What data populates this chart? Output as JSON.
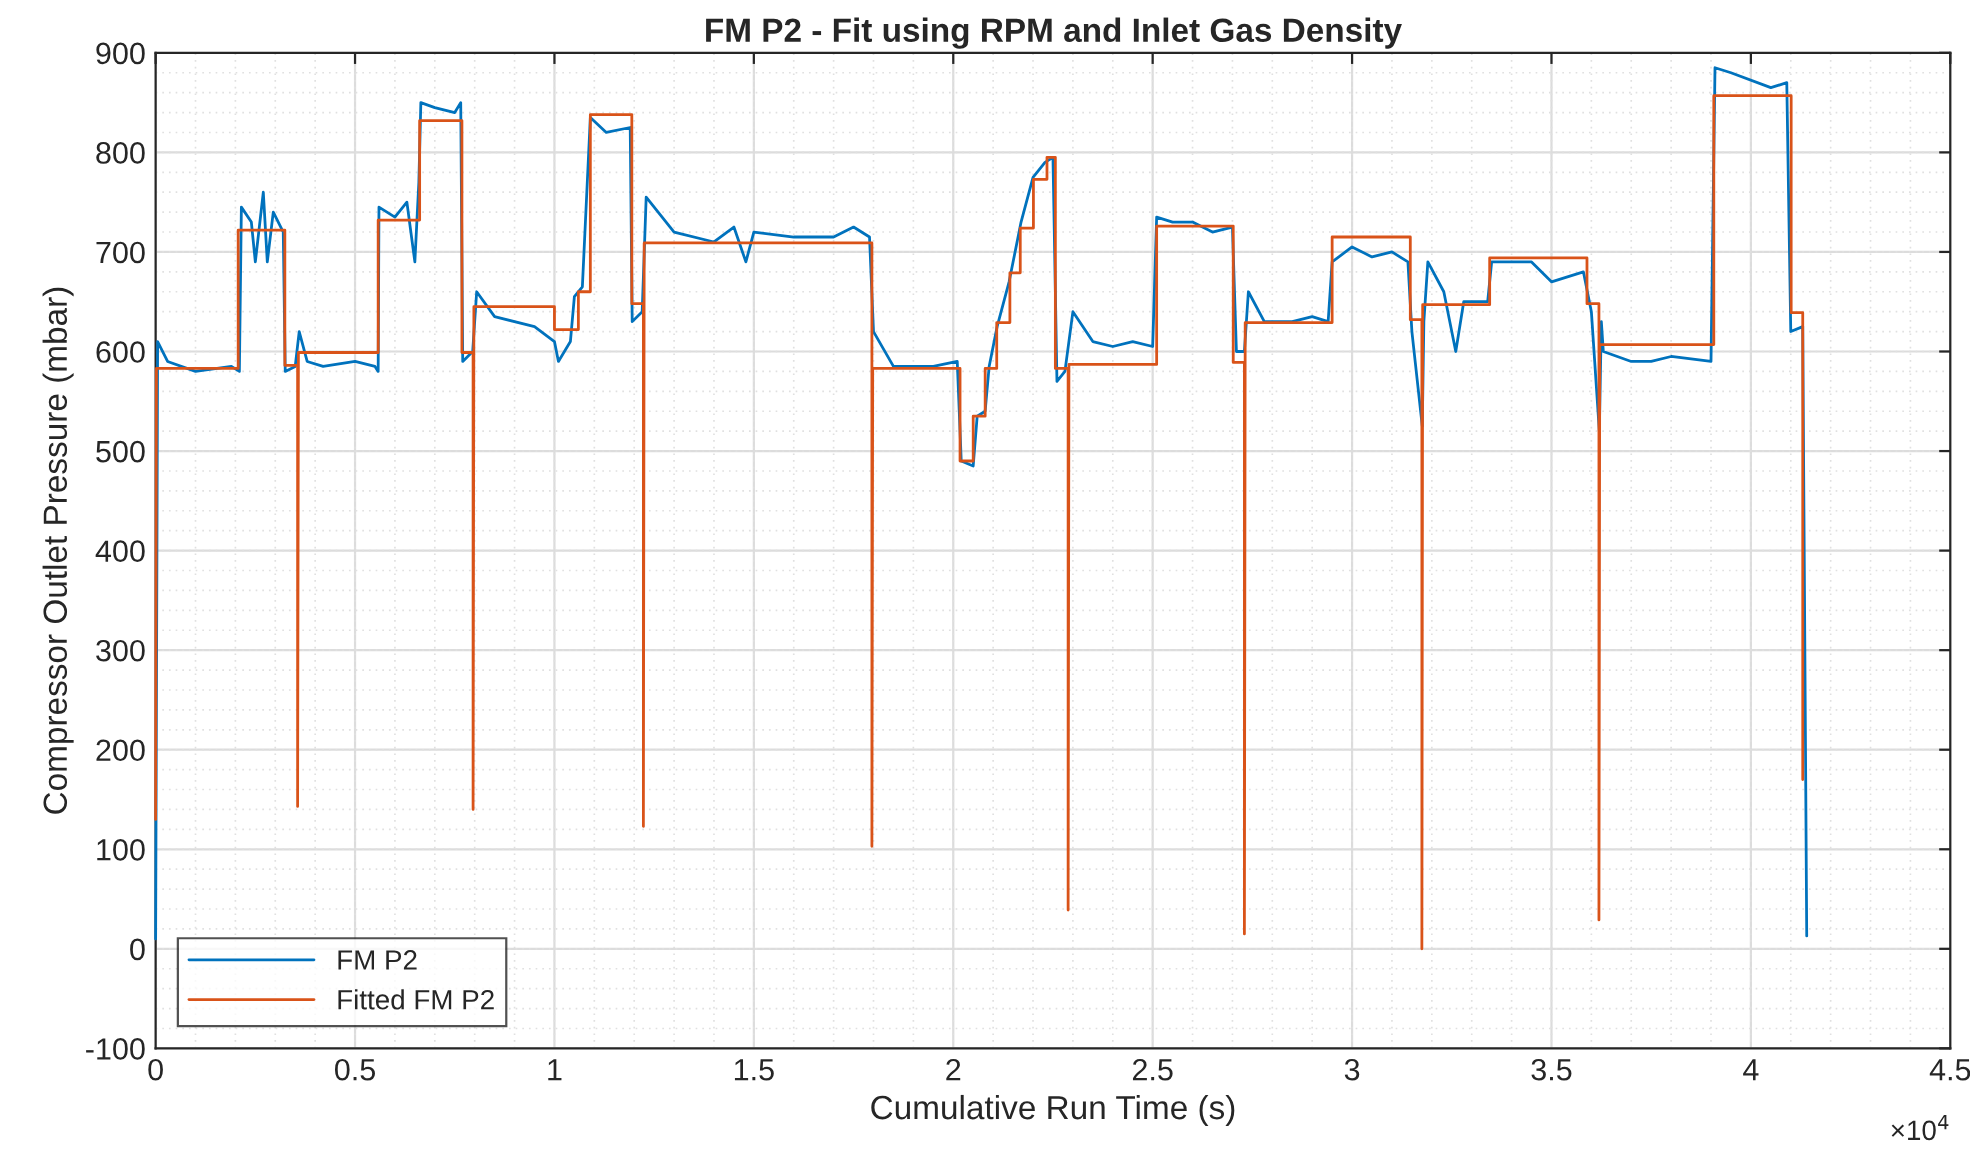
{
  "chart_data": {
    "type": "line",
    "title": "FM P2 - Fit using RPM and Inlet Gas Density",
    "xlabel": "Cumulative Run Time (s)",
    "ylabel": "Compressor Outlet Pressure (mbar)",
    "annotations": [
      "×10$^{4}$"
    ],
    "xlim": [
      0,
      4.5
    ],
    "ylim": [
      -100,
      900
    ],
    "xticks": [
      0,
      0.5,
      1,
      1.5,
      2,
      2.5,
      3,
      3.5,
      4,
      4.5
    ],
    "yticks": [
      -100,
      0,
      100,
      200,
      300,
      400,
      500,
      600,
      700,
      800,
      900
    ],
    "grid": true,
    "legend": "bottom left",
    "line_style": "solid",
    "marker": "none",
    "series": [
      {
        "name": "FM P2",
        "color": "#0072bd",
        "x": [
          0,
          0.005,
          0.03,
          0.1,
          0.19,
          0.21,
          0.215,
          0.24,
          0.25,
          0.27,
          0.28,
          0.295,
          0.32,
          0.325,
          0.35,
          0.36,
          0.38,
          0.42,
          0.5,
          0.55,
          0.558,
          0.56,
          0.6,
          0.63,
          0.65,
          0.66,
          0.665,
          0.7,
          0.75,
          0.765,
          0.77,
          0.795,
          0.805,
          0.85,
          0.95,
          1.0,
          1.01,
          1.04,
          1.05,
          1.07,
          1.09,
          1.13,
          1.19,
          1.195,
          1.22,
          1.23,
          1.3,
          1.4,
          1.45,
          1.48,
          1.5,
          1.6,
          1.7,
          1.75,
          1.79,
          1.8,
          1.85,
          1.95,
          2.01,
          2.02,
          2.05,
          2.06,
          2.08,
          2.09,
          2.11,
          2.14,
          2.17,
          2.2,
          2.23,
          2.25,
          2.26,
          2.28,
          2.3,
          2.35,
          2.4,
          2.45,
          2.5,
          2.51,
          2.55,
          2.6,
          2.65,
          2.7,
          2.71,
          2.73,
          2.74,
          2.78,
          2.85,
          2.9,
          2.94,
          2.95,
          3.0,
          3.05,
          3.1,
          3.14,
          3.15,
          3.176,
          3.18,
          3.19,
          3.23,
          3.26,
          3.28,
          3.34,
          3.35,
          3.4,
          3.45,
          3.5,
          3.58,
          3.6,
          3.62,
          3.625,
          3.63,
          3.7,
          3.75,
          3.8,
          3.9,
          3.91,
          3.95,
          4.05,
          4.09,
          4.1,
          4.13,
          4.14
        ],
        "values": [
          10,
          610,
          590,
          580,
          585,
          580,
          745,
          730,
          690,
          760,
          690,
          740,
          720,
          580,
          585,
          620,
          590,
          585,
          590,
          585,
          580,
          745,
          735,
          750,
          690,
          770,
          850,
          845,
          840,
          850,
          590,
          600,
          660,
          635,
          625,
          610,
          590,
          610,
          655,
          665,
          835,
          820,
          825,
          630,
          640,
          755,
          720,
          710,
          725,
          690,
          720,
          715,
          715,
          725,
          715,
          620,
          585,
          585,
          590,
          490,
          485,
          535,
          540,
          585,
          625,
          670,
          730,
          775,
          790,
          795,
          570,
          580,
          640,
          610,
          605,
          610,
          605,
          735,
          730,
          730,
          720,
          725,
          600,
          600,
          660,
          630,
          630,
          635,
          630,
          690,
          705,
          695,
          700,
          690,
          620,
          525,
          630,
          690,
          660,
          600,
          650,
          650,
          690,
          690,
          690,
          670,
          680,
          640,
          520,
          630,
          600,
          590,
          590,
          595,
          590,
          885,
          880,
          865,
          870,
          620,
          625,
          13
        ]
      },
      {
        "name": "Fitted FM P2",
        "color": "#d95319",
        "x": [
          0,
          0.002,
          0.207,
          0.207,
          0.324,
          0.324,
          0.356,
          0.356,
          0.358,
          0.558,
          0.558,
          0.662,
          0.662,
          0.768,
          0.768,
          0.796,
          0.796,
          0.798,
          1.0,
          1.0,
          1.06,
          1.06,
          1.09,
          1.09,
          1.194,
          1.194,
          1.223,
          1.223,
          1.225,
          1.796,
          1.796,
          1.798,
          2.017,
          2.017,
          2.05,
          2.05,
          2.08,
          2.08,
          2.109,
          2.109,
          2.142,
          2.142,
          2.168,
          2.168,
          2.201,
          2.201,
          2.235,
          2.235,
          2.256,
          2.256,
          2.288,
          2.288,
          2.29,
          2.51,
          2.51,
          2.702,
          2.702,
          2.73,
          2.73,
          2.732,
          2.95,
          2.95,
          3.146,
          3.146,
          3.175,
          3.175,
          3.177,
          3.345,
          3.345,
          3.589,
          3.589,
          3.619,
          3.619,
          3.621,
          3.907,
          3.907,
          4.101,
          4.101,
          4.13,
          4.13
        ],
        "values": [
          130,
          583,
          583,
          722,
          722,
          586,
          586,
          143,
          599,
          599,
          732,
          732,
          832,
          832,
          599,
          599,
          140,
          645,
          645,
          622,
          622,
          660,
          660,
          838,
          838,
          648,
          648,
          123,
          709,
          709,
          103,
          583,
          583,
          490,
          490,
          535,
          535,
          583,
          583,
          629,
          629,
          679,
          679,
          724,
          724,
          773,
          773,
          795,
          795,
          583,
          583,
          39,
          587,
          587,
          726,
          726,
          589,
          589,
          15,
          629,
          629,
          715,
          715,
          632,
          632,
          0,
          647,
          647,
          694,
          694,
          648,
          648,
          29,
          607,
          607,
          857,
          857,
          639,
          639,
          170
        ]
      }
    ]
  }
}
